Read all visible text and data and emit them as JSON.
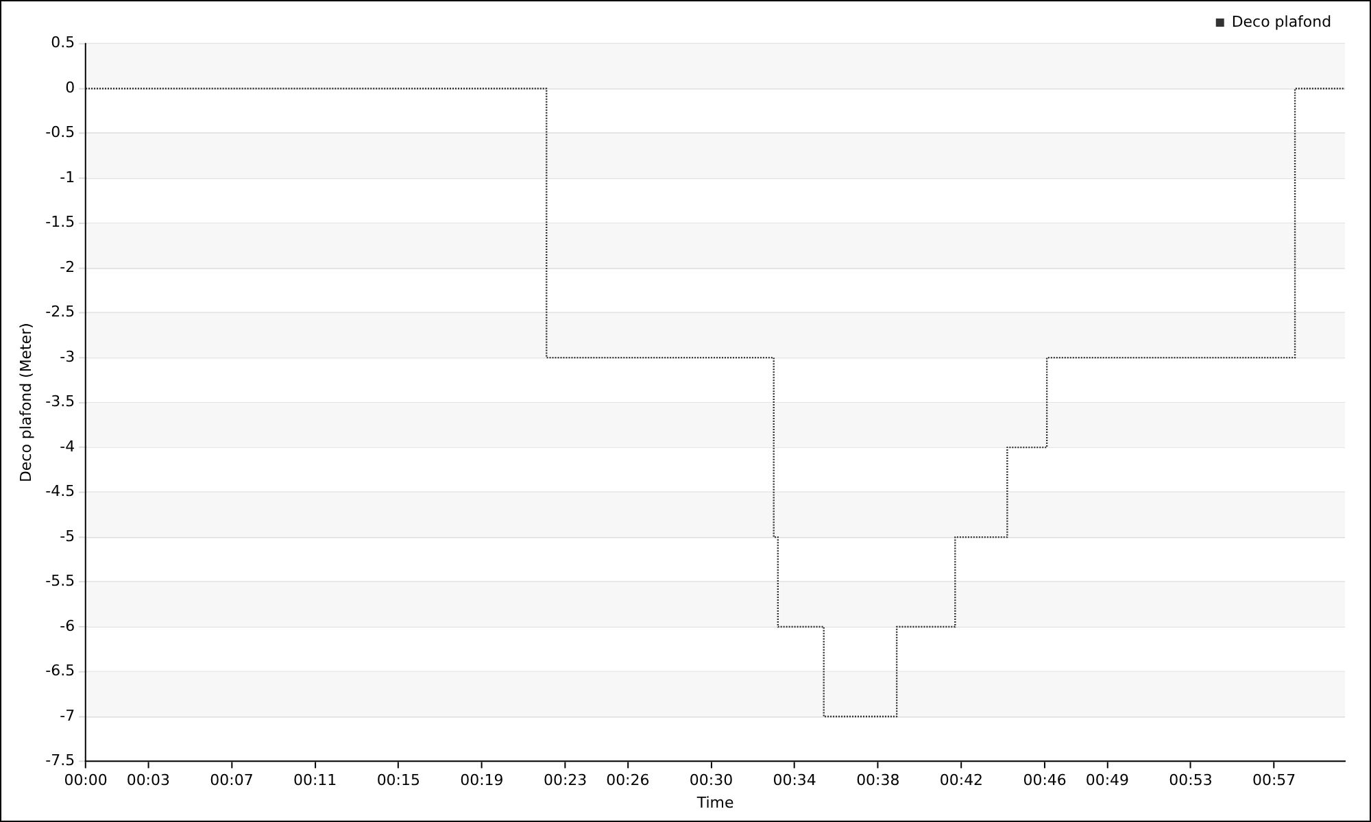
{
  "chart_data": {
    "type": "step",
    "xlabel": "Time",
    "ylabel": "Deco plafond (Meter)",
    "xlim": [
      0,
      60.4
    ],
    "ylim": [
      -7.5,
      0.5
    ],
    "xticks": [
      {
        "value": 0,
        "label": "00:00"
      },
      {
        "value": 3,
        "label": "00:03"
      },
      {
        "value": 7,
        "label": "00:07"
      },
      {
        "value": 11,
        "label": "00:11"
      },
      {
        "value": 15,
        "label": "00:15"
      },
      {
        "value": 19,
        "label": "00:19"
      },
      {
        "value": 23,
        "label": "00:23"
      },
      {
        "value": 26,
        "label": "00:26"
      },
      {
        "value": 30,
        "label": "00:30"
      },
      {
        "value": 34,
        "label": "00:34"
      },
      {
        "value": 38,
        "label": "00:38"
      },
      {
        "value": 42,
        "label": "00:42"
      },
      {
        "value": 46,
        "label": "00:46"
      },
      {
        "value": 49,
        "label": "00:49"
      },
      {
        "value": 53,
        "label": "00:53"
      },
      {
        "value": 57,
        "label": "00:57"
      }
    ],
    "yticks": [
      0.5,
      0,
      -0.5,
      -1,
      -1.5,
      -2,
      -2.5,
      -3,
      -3.5,
      -4,
      -4.5,
      -5,
      -5.5,
      -6,
      -6.5,
      -7,
      -7.5
    ],
    "grid": "y",
    "legend": "top right",
    "marker": "none",
    "line_style": "dotted",
    "series": [
      {
        "name": "Deco plafond",
        "color": "#333333",
        "x": [
          0,
          22.1,
          33.0,
          33.2,
          35.4,
          38.9,
          41.7,
          44.2,
          46.1,
          58.0,
          60.4
        ],
        "values": [
          0,
          -3,
          -5,
          -6,
          -7,
          -6,
          -5,
          -4,
          -3,
          0,
          0
        ]
      }
    ]
  }
}
